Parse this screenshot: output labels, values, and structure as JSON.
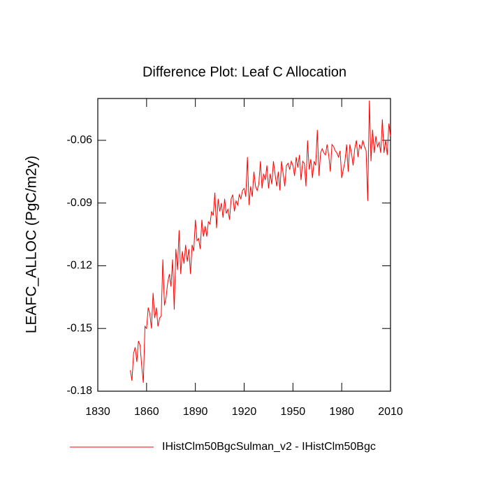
{
  "chart_data": {
    "type": "line",
    "title": "Difference Plot: Leaf C Allocation",
    "y_label": "LEAFC_ALLOC  (PgC/m2y)",
    "xlim": [
      1830,
      2010
    ],
    "xticks": [
      1830,
      1860,
      1890,
      1920,
      1950,
      1980,
      2010
    ],
    "ylim": [
      -0.18,
      -0.04
    ],
    "yticks": [
      -0.18,
      -0.15,
      -0.12,
      -0.09,
      -0.06
    ],
    "x": [
      1850,
      1851,
      1852,
      1853,
      1854,
      1855,
      1856,
      1857,
      1858,
      1859,
      1860,
      1861,
      1862,
      1863,
      1864,
      1865,
      1866,
      1867,
      1868,
      1869,
      1870,
      1871,
      1872,
      1873,
      1874,
      1875,
      1876,
      1877,
      1878,
      1879,
      1880,
      1881,
      1882,
      1883,
      1884,
      1885,
      1886,
      1887,
      1888,
      1889,
      1890,
      1891,
      1892,
      1893,
      1894,
      1895,
      1896,
      1897,
      1898,
      1899,
      1900,
      1901,
      1902,
      1903,
      1904,
      1905,
      1906,
      1907,
      1908,
      1909,
      1910,
      1911,
      1912,
      1913,
      1914,
      1915,
      1916,
      1917,
      1918,
      1919,
      1920,
      1921,
      1922,
      1923,
      1924,
      1925,
      1926,
      1927,
      1928,
      1929,
      1930,
      1931,
      1932,
      1933,
      1934,
      1935,
      1936,
      1937,
      1938,
      1939,
      1940,
      1941,
      1942,
      1943,
      1944,
      1945,
      1946,
      1947,
      1948,
      1949,
      1950,
      1951,
      1952,
      1953,
      1954,
      1955,
      1956,
      1957,
      1958,
      1959,
      1960,
      1961,
      1962,
      1963,
      1964,
      1965,
      1966,
      1967,
      1968,
      1969,
      1970,
      1971,
      1972,
      1973,
      1974,
      1975,
      1976,
      1977,
      1978,
      1979,
      1980,
      1981,
      1982,
      1983,
      1984,
      1985,
      1986,
      1987,
      1988,
      1989,
      1990,
      1991,
      1992,
      1993,
      1994,
      1995,
      1996,
      1997,
      1998,
      1999,
      2000,
      2001,
      2002,
      2003,
      2004,
      2005,
      2006,
      2007,
      2008,
      2009,
      2010
    ],
    "series": [
      {
        "name": "IHistClm50BgcSulman_v2 - IHistClm50Bgc",
        "color": "#ff0000",
        "values": [
          -0.17,
          -0.175,
          -0.162,
          -0.159,
          -0.166,
          -0.156,
          -0.158,
          -0.168,
          -0.176,
          -0.149,
          -0.15,
          -0.14,
          -0.143,
          -0.15,
          -0.133,
          -0.145,
          -0.14,
          -0.149,
          -0.145,
          -0.144,
          -0.117,
          -0.139,
          -0.135,
          -0.128,
          -0.124,
          -0.13,
          -0.117,
          -0.141,
          -0.112,
          -0.122,
          -0.103,
          -0.124,
          -0.113,
          -0.119,
          -0.11,
          -0.118,
          -0.112,
          -0.124,
          -0.11,
          -0.113,
          -0.098,
          -0.108,
          -0.107,
          -0.112,
          -0.098,
          -0.106,
          -0.101,
          -0.106,
          -0.099,
          -0.1,
          -0.094,
          -0.096,
          -0.085,
          -0.102,
          -0.088,
          -0.094,
          -0.09,
          -0.097,
          -0.088,
          -0.095,
          -0.093,
          -0.098,
          -0.088,
          -0.086,
          -0.094,
          -0.089,
          -0.091,
          -0.086,
          -0.088,
          -0.084,
          -0.083,
          -0.087,
          -0.068,
          -0.091,
          -0.082,
          -0.087,
          -0.075,
          -0.082,
          -0.084,
          -0.081,
          -0.07,
          -0.083,
          -0.076,
          -0.079,
          -0.072,
          -0.083,
          -0.076,
          -0.081,
          -0.07,
          -0.076,
          -0.082,
          -0.075,
          -0.084,
          -0.07,
          -0.076,
          -0.082,
          -0.072,
          -0.071,
          -0.074,
          -0.07,
          -0.072,
          -0.077,
          -0.068,
          -0.073,
          -0.067,
          -0.079,
          -0.07,
          -0.071,
          -0.082,
          -0.06,
          -0.074,
          -0.069,
          -0.078,
          -0.07,
          -0.072,
          -0.055,
          -0.077,
          -0.066,
          -0.064,
          -0.066,
          -0.067,
          -0.062,
          -0.067,
          -0.075,
          -0.062,
          -0.063,
          -0.065,
          -0.066,
          -0.068,
          -0.065,
          -0.078,
          -0.074,
          -0.07,
          -0.062,
          -0.075,
          -0.062,
          -0.066,
          -0.072,
          -0.064,
          -0.06,
          -0.068,
          -0.062,
          -0.064,
          -0.06,
          -0.063,
          -0.065,
          -0.089,
          -0.041,
          -0.07,
          -0.055,
          -0.066,
          -0.058,
          -0.063,
          -0.061,
          -0.066,
          -0.05,
          -0.066,
          -0.06,
          -0.067,
          -0.052,
          -0.058
        ]
      }
    ]
  }
}
